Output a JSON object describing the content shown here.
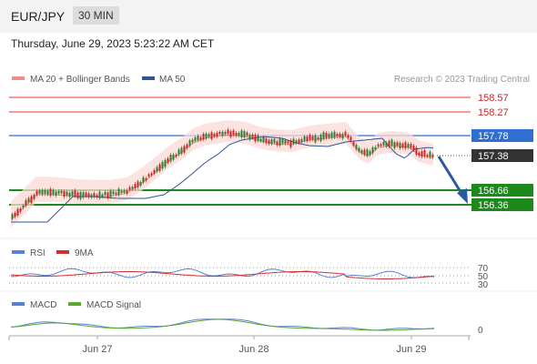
{
  "header": {
    "pair": "EUR/JPY",
    "timeframe": "30 MIN"
  },
  "panel": {
    "date_line": "Thursday, June 29, 2023 5:23:22 AM CET"
  },
  "legend": {
    "items": [
      {
        "label": "MA 20 + Bollinger Bands",
        "color": "#f28b82"
      },
      {
        "label": "MA 50",
        "color": "#2f5597"
      }
    ],
    "copyright": "Research © 2023 Trading Central"
  },
  "levels": {
    "resistance": [
      {
        "label": "158.57",
        "value": 158.57
      },
      {
        "label": "158.27",
        "value": 158.27
      }
    ],
    "pivot": {
      "label": "157.78",
      "value": 157.78
    },
    "last_price": {
      "label": "157.38",
      "value": 157.38
    },
    "support": [
      {
        "label": "156.66",
        "value": 156.66
      },
      {
        "label": "156.36",
        "value": 156.36
      }
    ]
  },
  "rsi": {
    "legend": [
      {
        "label": "RSI",
        "color": "#5b7fd6"
      },
      {
        "label": "9MA",
        "color": "#d32f2f"
      }
    ],
    "levels": [
      "70",
      "50",
      "30"
    ]
  },
  "macd": {
    "legend": [
      {
        "label": "MACD",
        "color": "#5b7fd6"
      },
      {
        "label": "MACD Signal",
        "color": "#5ba82a"
      }
    ],
    "zero_label": "0"
  },
  "xaxis": {
    "labels": [
      "Jun 27",
      "Jun 28",
      "Jun 29"
    ]
  },
  "colors": {
    "up": "#2e7d32",
    "down": "#c62828",
    "pivot": "#2f6fd1",
    "support": "#1b8a1b",
    "resistance": "#e53935",
    "arrow": "#2c5aa0"
  }
}
